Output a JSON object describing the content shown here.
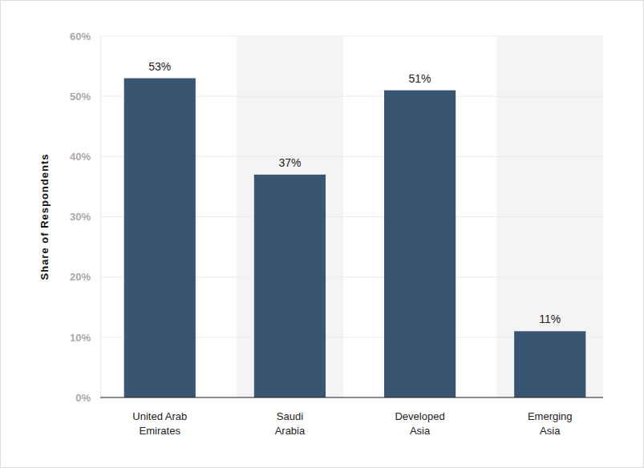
{
  "chart_data": {
    "type": "bar",
    "y_label": "Share of Respondents",
    "categories": [
      "United Arab Emirates",
      "Saudi Arabia",
      "Developed Asia",
      "Emerging Asia"
    ],
    "values": [
      53,
      37,
      51,
      11
    ],
    "value_labels": [
      "53%",
      "37%",
      "51%",
      "11%"
    ],
    "data_labels": true,
    "color": "#3a5572",
    "ylim": [
      0,
      60
    ],
    "yticks": [
      {
        "value": 0,
        "label": "0%"
      },
      {
        "value": 10,
        "label": "10%"
      },
      {
        "value": 20,
        "label": "20%"
      },
      {
        "value": 30,
        "label": "30%"
      },
      {
        "value": 40,
        "label": "40%"
      },
      {
        "value": 50,
        "label": "50%"
      },
      {
        "value": 60,
        "label": "60%"
      }
    ],
    "grid": true
  }
}
